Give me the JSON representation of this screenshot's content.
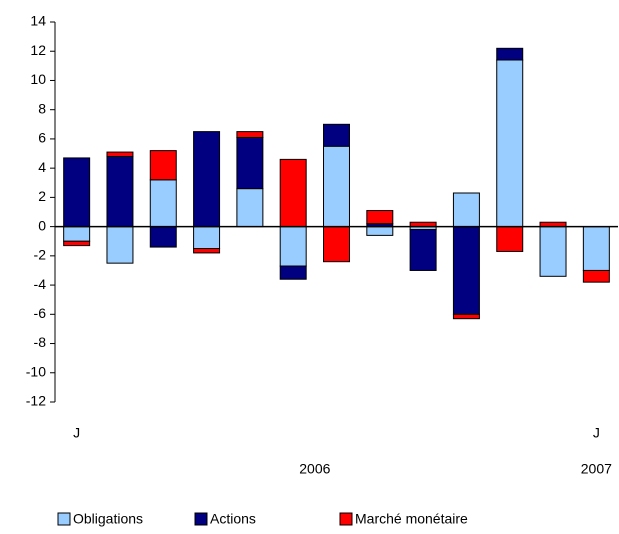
{
  "chart_data": {
    "type": "stacked_bar",
    "categories": [
      "J",
      null,
      null,
      null,
      null,
      null,
      null,
      null,
      null,
      null,
      null,
      null,
      "J"
    ],
    "groups": [
      {
        "label": "2006",
        "count": 12
      },
      {
        "label": "2007",
        "count": 1
      }
    ],
    "series": [
      {
        "name": "Obligations",
        "color": "#99ccff",
        "values": [
          -1.0,
          -2.5,
          3.2,
          -1.5,
          2.6,
          -2.7,
          5.5,
          -0.6,
          -0.2,
          2.3,
          11.4,
          -3.4,
          -3.0
        ]
      },
      {
        "name": "Actions",
        "color": "#000080",
        "values": [
          4.7,
          4.8,
          -1.4,
          6.5,
          3.5,
          -0.9,
          1.5,
          0.2,
          -2.8,
          -6.0,
          0.8,
          0,
          0
        ]
      },
      {
        "name": "Marché monétaire",
        "color": "#ff0000",
        "values": [
          -0.3,
          0.3,
          2.0,
          -0.3,
          0.4,
          4.6,
          -2.4,
          0.9,
          0.3,
          -0.3,
          -1.7,
          0.3,
          -0.8
        ]
      }
    ],
    "ylim": [
      -12,
      14
    ],
    "yticks": [
      -12,
      -10,
      -8,
      -6,
      -4,
      -2,
      0,
      2,
      4,
      6,
      8,
      10,
      12,
      14
    ],
    "grid": false,
    "legend": "bottom"
  }
}
